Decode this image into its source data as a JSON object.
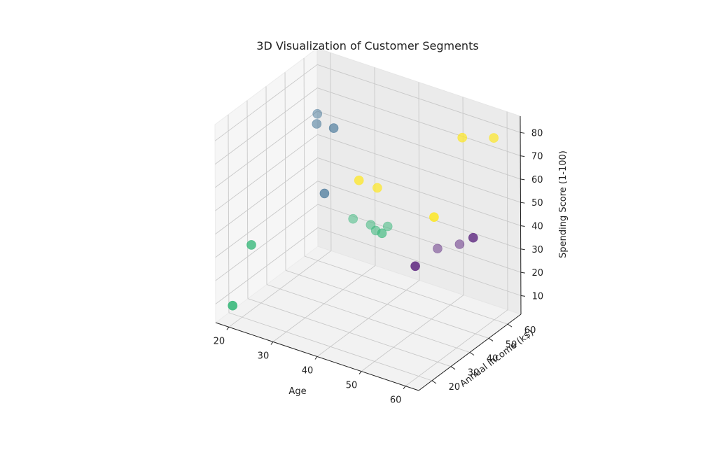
{
  "chart_data": {
    "type": "scatter",
    "projection": "3d",
    "title": "3D Visualization of Customer Segments",
    "xlabel": "Age",
    "ylabel": "Annual Income (k$)",
    "zlabel": "Spending Score (1-100)",
    "xlim": [
      17,
      63
    ],
    "ylim": [
      13,
      67
    ],
    "zlim": [
      2,
      87
    ],
    "x_ticks": [
      20,
      30,
      40,
      50,
      60
    ],
    "y_ticks": [
      20,
      30,
      40,
      50,
      60
    ],
    "z_ticks": [
      10,
      20,
      30,
      40,
      50,
      60,
      70,
      80
    ],
    "grid": true,
    "colormap": "viridis",
    "series": [
      {
        "color": "#31688e",
        "points": [
          {
            "x": 20,
            "y": 60,
            "z": 65
          },
          {
            "x": 22,
            "y": 55,
            "z": 65
          },
          {
            "x": 28,
            "y": 50,
            "z": 70
          },
          {
            "x": 28,
            "y": 45,
            "z": 45
          }
        ]
      },
      {
        "color": "#35b779",
        "points": [
          {
            "x": 20,
            "y": 25,
            "z": 30
          },
          {
            "x": 20,
            "y": 15,
            "z": 10
          },
          {
            "x": 28,
            "y": 60,
            "z": 25
          },
          {
            "x": 32,
            "y": 60,
            "z": 25
          },
          {
            "x": 34,
            "y": 58,
            "z": 25
          },
          {
            "x": 35,
            "y": 62,
            "z": 25
          },
          {
            "x": 38,
            "y": 52,
            "z": 30
          }
        ]
      },
      {
        "color": "#fde725",
        "points": [
          {
            "x": 38,
            "y": 40,
            "z": 60
          },
          {
            "x": 40,
            "y": 45,
            "z": 55
          },
          {
            "x": 55,
            "y": 55,
            "z": 80
          },
          {
            "x": 60,
            "y": 60,
            "z": 80
          },
          {
            "x": 55,
            "y": 40,
            "z": 55
          }
        ]
      },
      {
        "color": "#6b3a8a",
        "points": [
          {
            "x": 45,
            "y": 65,
            "z": 20
          },
          {
            "x": 55,
            "y": 30,
            "z": 40
          },
          {
            "x": 63,
            "y": 42,
            "z": 50
          },
          {
            "x": 50,
            "y": 65,
            "z": 25
          }
        ]
      }
    ]
  }
}
